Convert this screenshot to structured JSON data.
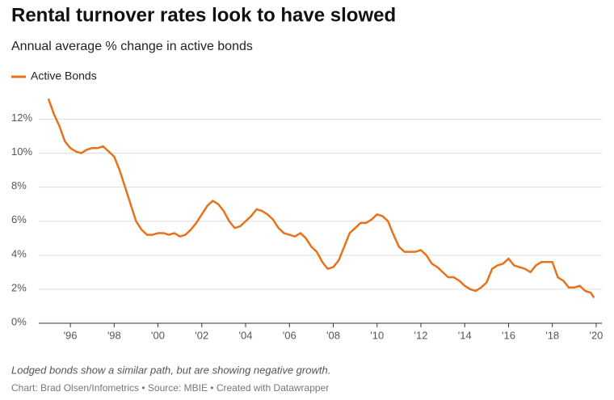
{
  "chart_data": {
    "type": "line",
    "title": "Rental turnover rates look to have slowed",
    "subtitle": "Annual average % change in active bonds",
    "note": "Lodged bonds show a similar path, but are showing negative growth.",
    "source": "Chart: Brad Olsen/Infometrics • Source: MBIE • Created with Datawrapper",
    "x": [
      1995.0,
      1995.25,
      1995.5,
      1995.75,
      1996.0,
      1996.25,
      1996.5,
      1996.75,
      1997.0,
      1997.25,
      1997.5,
      1997.75,
      1998.0,
      1998.25,
      1998.5,
      1998.75,
      1999.0,
      1999.25,
      1999.5,
      1999.75,
      2000.0,
      2000.25,
      2000.5,
      2000.75,
      2001.0,
      2001.25,
      2001.5,
      2001.75,
      2002.0,
      2002.25,
      2002.5,
      2002.75,
      2003.0,
      2003.25,
      2003.5,
      2003.75,
      2004.0,
      2004.25,
      2004.5,
      2004.75,
      2005.0,
      2005.25,
      2005.5,
      2005.75,
      2006.0,
      2006.25,
      2006.5,
      2006.75,
      2007.0,
      2007.25,
      2007.5,
      2007.75,
      2008.0,
      2008.25,
      2008.5,
      2008.75,
      2009.0,
      2009.25,
      2009.5,
      2009.75,
      2010.0,
      2010.25,
      2010.5,
      2010.75,
      2011.0,
      2011.25,
      2011.5,
      2011.75,
      2012.0,
      2012.25,
      2012.5,
      2012.75,
      2013.0,
      2013.25,
      2013.5,
      2013.75,
      2014.0,
      2014.25,
      2014.5,
      2014.75,
      2015.0,
      2015.25,
      2015.5,
      2015.75,
      2016.0,
      2016.25,
      2016.5,
      2016.75,
      2017.0,
      2017.25,
      2017.5,
      2017.75,
      2018.0,
      2018.25,
      2018.5,
      2018.75,
      2019.0,
      2019.25,
      2019.5,
      2019.75,
      2019.9
    ],
    "series": [
      {
        "name": "Active Bonds",
        "color": "#e8711c",
        "values": [
          13.2,
          12.3,
          11.6,
          10.7,
          10.3,
          10.1,
          10.0,
          10.2,
          10.3,
          10.3,
          10.4,
          10.1,
          9.8,
          9.0,
          8.0,
          7.0,
          6.0,
          5.5,
          5.2,
          5.2,
          5.3,
          5.3,
          5.2,
          5.3,
          5.1,
          5.2,
          5.5,
          5.9,
          6.4,
          6.9,
          7.2,
          7.0,
          6.6,
          6.0,
          5.6,
          5.7,
          6.0,
          6.3,
          6.7,
          6.6,
          6.4,
          6.1,
          5.6,
          5.3,
          5.2,
          5.1,
          5.3,
          5.0,
          4.5,
          4.2,
          3.6,
          3.2,
          3.3,
          3.7,
          4.5,
          5.3,
          5.6,
          5.9,
          5.9,
          6.1,
          6.4,
          6.3,
          6.0,
          5.2,
          4.5,
          4.2,
          4.2,
          4.2,
          4.3,
          4.0,
          3.5,
          3.3,
          3.0,
          2.7,
          2.7,
          2.5,
          2.2,
          2.0,
          1.9,
          2.1,
          2.4,
          3.2,
          3.4,
          3.5,
          3.8,
          3.4,
          3.3,
          3.2,
          3.0,
          3.4,
          3.6,
          3.6,
          3.6,
          2.7,
          2.5,
          2.1,
          2.1,
          2.2,
          1.9,
          1.8,
          1.5
        ]
      }
    ],
    "xlim": [
      1994.56,
      2020.26
    ],
    "ylim": [
      0,
      13.4
    ],
    "xticks": [
      {
        "value": 1996,
        "label": "'96"
      },
      {
        "value": 1998,
        "label": "'98"
      },
      {
        "value": 2000,
        "label": "'00"
      },
      {
        "value": 2002,
        "label": "'02"
      },
      {
        "value": 2004,
        "label": "'04"
      },
      {
        "value": 2006,
        "label": "'06"
      },
      {
        "value": 2008,
        "label": "'08"
      },
      {
        "value": 2010,
        "label": "'10"
      },
      {
        "value": 2012,
        "label": "'12"
      },
      {
        "value": 2014,
        "label": "'14"
      },
      {
        "value": 2016,
        "label": "'16"
      },
      {
        "value": 2018,
        "label": "'18"
      },
      {
        "value": 2020,
        "label": "'20"
      }
    ],
    "yticks": [
      {
        "value": 0,
        "label": "0%"
      },
      {
        "value": 2,
        "label": "2%"
      },
      {
        "value": 4,
        "label": "4%"
      },
      {
        "value": 6,
        "label": "6%"
      },
      {
        "value": 8,
        "label": "8%"
      },
      {
        "value": 10,
        "label": "10%"
      },
      {
        "value": 12,
        "label": "12%"
      }
    ],
    "grid": true
  }
}
